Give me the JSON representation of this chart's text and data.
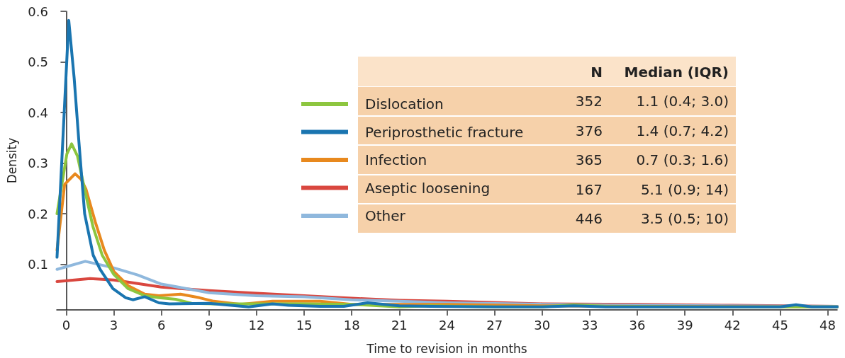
{
  "chart_data": {
    "type": "line",
    "xlabel": "Time to revision in months",
    "ylabel": "Density",
    "xlim": [
      -0.6,
      48.6
    ],
    "xticks": [
      0,
      3,
      6,
      9,
      12,
      15,
      18,
      21,
      24,
      27,
      30,
      33,
      36,
      39,
      42,
      45,
      48
    ],
    "ylim": [
      0.01,
      0.6
    ],
    "yticks": [
      0.1,
      0.2,
      0.3,
      0.4,
      0.5,
      0.6
    ],
    "grid": false,
    "legend": "right",
    "marker": "none",
    "line_style": "solid",
    "annotations": [
      "N",
      "Median (IQR)",
      "352",
      "1.1 (0.4; 3.0)",
      "376",
      "1.4 (0.7; 4.2)",
      "365",
      "0.7 (0.3; 1.6)",
      "167",
      "5.1 (0.9; 14)",
      "446",
      "3.5 (0.5; 10)"
    ],
    "series": [
      {
        "name": "Dislocation",
        "color": "#8dc63f",
        "x": [
          -0.58,
          0.04,
          0.34,
          0.71,
          1.16,
          1.69,
          2.27,
          3.0,
          3.9,
          4.95,
          5.84,
          6.9,
          7.9,
          9.3,
          12,
          15,
          18,
          21,
          23,
          27,
          30,
          32,
          34,
          40,
          48.6
        ],
        "values": [
          0.2,
          0.318,
          0.338,
          0.314,
          0.248,
          0.174,
          0.118,
          0.08,
          0.052,
          0.038,
          0.034,
          0.031,
          0.023,
          0.022,
          0.022,
          0.022,
          0.021,
          0.016,
          0.018,
          0.016,
          0.016,
          0.02,
          0.017,
          0.016,
          0.016
        ]
      },
      {
        "name": "Periprosthetic fracture",
        "color": "#1a75b0",
        "x": [
          -0.58,
          0.16,
          0.5,
          0.8,
          1.16,
          1.7,
          2.14,
          2.94,
          3.75,
          4.2,
          4.95,
          5.84,
          6.5,
          9,
          11.5,
          13,
          14,
          16,
          17.5,
          19,
          21,
          23,
          27,
          30,
          32,
          34,
          40,
          45,
          46,
          47,
          48.6
        ],
        "values": [
          0.114,
          0.582,
          0.468,
          0.342,
          0.2,
          0.118,
          0.09,
          0.052,
          0.034,
          0.03,
          0.036,
          0.024,
          0.022,
          0.023,
          0.016,
          0.022,
          0.019,
          0.017,
          0.017,
          0.024,
          0.018,
          0.017,
          0.016,
          0.016,
          0.018,
          0.016,
          0.016,
          0.016,
          0.02,
          0.016,
          0.016
        ]
      },
      {
        "name": "Infection",
        "color": "#e8891e",
        "x": [
          -0.58,
          -0.1,
          0.56,
          0.94,
          1.24,
          1.83,
          2.4,
          3.0,
          3.9,
          4.95,
          5.84,
          7.2,
          8.4,
          9.3,
          11,
          13,
          16,
          18,
          21,
          24,
          30,
          36,
          48.6
        ],
        "values": [
          0.128,
          0.258,
          0.279,
          0.268,
          0.249,
          0.184,
          0.128,
          0.086,
          0.058,
          0.041,
          0.038,
          0.041,
          0.034,
          0.027,
          0.021,
          0.027,
          0.027,
          0.021,
          0.021,
          0.021,
          0.018,
          0.017,
          0.016
        ]
      },
      {
        "name": "Aseptic loosening",
        "color": "#d9473f",
        "x": [
          -0.58,
          1.5,
          3,
          6,
          9,
          12,
          15,
          18,
          21,
          24,
          30,
          36,
          42,
          48.6
        ],
        "values": [
          0.066,
          0.072,
          0.069,
          0.055,
          0.048,
          0.043,
          0.038,
          0.033,
          0.029,
          0.027,
          0.022,
          0.021,
          0.019,
          0.017
        ]
      },
      {
        "name": "Other",
        "color": "#8fb8dd",
        "x": [
          -0.58,
          1.2,
          3,
          4.5,
          6,
          9,
          12,
          15,
          18,
          21,
          24,
          30,
          36,
          48.6
        ],
        "values": [
          0.09,
          0.106,
          0.093,
          0.079,
          0.061,
          0.044,
          0.038,
          0.036,
          0.03,
          0.027,
          0.024,
          0.021,
          0.019,
          0.017
        ]
      }
    ]
  }
}
